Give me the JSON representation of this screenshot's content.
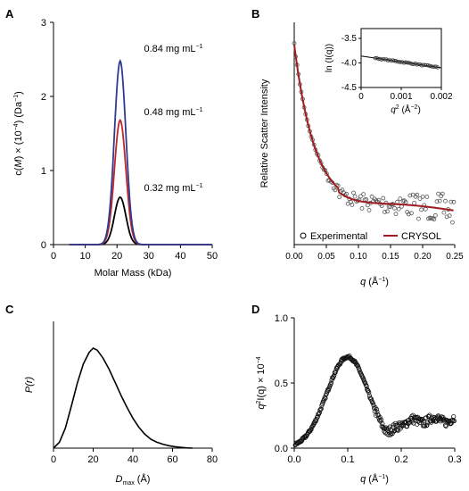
{
  "chart_data": [
    {
      "panel": "A",
      "type": "line",
      "xlabel": "Molar Mass (kDa)",
      "ylabel_parts": [
        "c(",
        "M",
        ") × (10",
        "−4",
        ") (Da",
        "−1",
        ")"
      ],
      "xlim": [
        0,
        50
      ],
      "ylim": [
        0,
        3
      ],
      "xticks": [
        0,
        10,
        20,
        30,
        40,
        50
      ],
      "yticks": [
        0,
        1,
        2,
        3
      ],
      "peak_center": 21,
      "peak_sigma": 1.8,
      "series": [
        {
          "name": "0.84 mg mL−1",
          "peak": 2.48,
          "color": "#2f3b8f"
        },
        {
          "name": "0.48 mg mL−1",
          "peak": 1.68,
          "color": "#c0272d"
        },
        {
          "name": "0.32 mg mL−1",
          "peak": 0.64,
          "color": "#000000"
        }
      ],
      "annotations": [
        {
          "text": "0.84 mg mL",
          "sup": "−1",
          "x": 28.5,
          "y": 2.6
        },
        {
          "text": "0.48 mg mL",
          "sup": "−1",
          "x": 28.5,
          "y": 1.75
        },
        {
          "text": "0.32 mg mL",
          "sup": "−1",
          "x": 28.5,
          "y": 0.72
        }
      ]
    },
    {
      "panel": "B",
      "type": "scatter",
      "xlabel": "q",
      "xlabel_unit": "(Å",
      "xlabel_unit_sup": "−1",
      "xlabel_unit_end": ")",
      "ylabel": "Relative Scatter  Intensity",
      "xlim": [
        0,
        0.25
      ],
      "xticks": [
        0.0,
        0.05,
        0.1,
        0.15,
        0.2,
        0.25
      ],
      "xtick_labels": [
        "0.00",
        "0.05",
        "0.10",
        "0.15",
        "0.20",
        "0.25"
      ],
      "legend": {
        "placement": "bottom",
        "entries": [
          "Experimental",
          "CRYSOL"
        ]
      },
      "series": [
        {
          "name": "Experimental",
          "marker": "open-circle",
          "color": "#555555"
        },
        {
          "name": "CRYSOL",
          "line": true,
          "color": "#9e1b20"
        }
      ],
      "inset": {
        "type": "scatter",
        "xlabel_parts": [
          "q",
          "2",
          " (Å",
          "−2",
          ")"
        ],
        "ylabel": "ln (I(q))",
        "xlim": [
          0,
          0.002
        ],
        "ylim": [
          -4.5,
          -3.3
        ],
        "xticks": [
          0,
          0.001,
          0.002
        ],
        "xtick_labels": [
          "0",
          "0.001",
          "0.002"
        ],
        "yticks": [
          -4.5,
          -4.0,
          -3.5
        ],
        "ytick_labels": [
          "-4.5",
          "-4.0",
          "-3.5"
        ],
        "fit": {
          "x": [
            0.0,
            0.002
          ],
          "y": [
            -3.86,
            -4.1
          ]
        },
        "points_x_range": [
          0.00035,
          0.00195
        ]
      }
    },
    {
      "panel": "C",
      "type": "line",
      "xlabel": "D",
      "xlabel_sub": "max",
      "xlabel_unit": " (Å)",
      "ylabel": "P(r)",
      "xlim": [
        0,
        80
      ],
      "xticks": [
        0,
        20,
        40,
        60,
        80
      ],
      "x": [
        0,
        3,
        6,
        9,
        12,
        15,
        18,
        20,
        22,
        25,
        28,
        31,
        34,
        37,
        40,
        43,
        46,
        49,
        52,
        55,
        58,
        61,
        64,
        67,
        70
      ],
      "y": [
        0.0,
        0.06,
        0.2,
        0.42,
        0.65,
        0.84,
        0.96,
        1.0,
        0.98,
        0.9,
        0.79,
        0.66,
        0.53,
        0.41,
        0.3,
        0.21,
        0.14,
        0.09,
        0.06,
        0.04,
        0.025,
        0.015,
        0.008,
        0.003,
        0.0
      ]
    },
    {
      "panel": "D",
      "type": "scatter",
      "xlabel": "q",
      "xlabel_unit": "(Å",
      "xlabel_unit_sup": "−1",
      "xlabel_unit_end": ")",
      "ylabel_parts": [
        "q",
        "2",
        "I(q) × 10",
        "−4"
      ],
      "xlim": [
        0,
        0.3
      ],
      "ylim": [
        0,
        1.0
      ],
      "xticks": [
        0.0,
        0.1,
        0.2,
        0.3
      ],
      "xtick_labels": [
        "0.0",
        "0.1",
        "0.2",
        "0.3"
      ],
      "yticks": [
        0.0,
        0.5,
        1.0
      ],
      "ytick_labels": [
        "0.0",
        "0.5",
        "1.0"
      ],
      "peak_q": 0.1,
      "peak_value": 0.7,
      "tail_level": 0.22,
      "marker": "open-circle"
    }
  ],
  "panel_labels": [
    "A",
    "B",
    "C",
    "D"
  ]
}
